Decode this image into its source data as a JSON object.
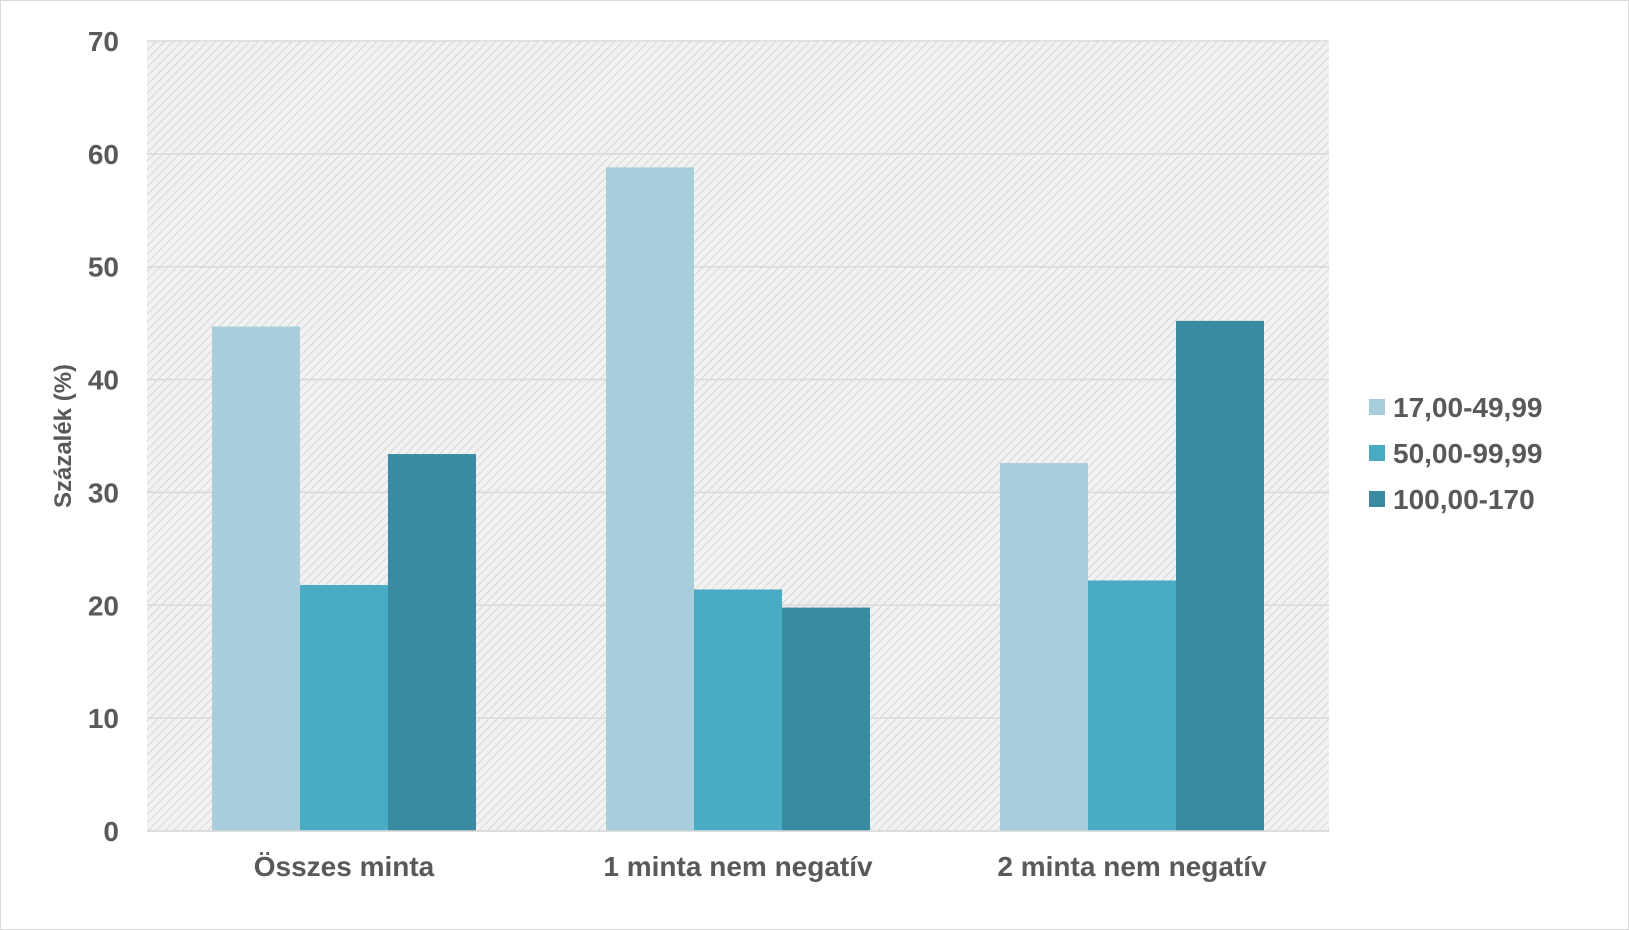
{
  "chart_data": {
    "type": "bar",
    "title": "",
    "xlabel": "",
    "ylabel": "Százalék (%)",
    "ylim": [
      0,
      70
    ],
    "yticks": [
      "0",
      "10",
      "20",
      "30",
      "40",
      "50",
      "60",
      "70"
    ],
    "grid": true,
    "legend_position": "right",
    "categories": [
      "Összes minta",
      "1 minta nem negatív",
      "2 minta nem negatív"
    ],
    "series": [
      {
        "name": "17,00-49,99",
        "color": "#a8cddb",
        "values": [
          44.7,
          58.8,
          32.6
        ]
      },
      {
        "name": "50,00-99,99",
        "color": "#4aabc5",
        "values": [
          21.8,
          21.4,
          22.2
        ]
      },
      {
        "name": "100,00-170",
        "color": "#3a8aa1",
        "values": [
          33.4,
          19.8,
          45.2
        ]
      }
    ]
  }
}
